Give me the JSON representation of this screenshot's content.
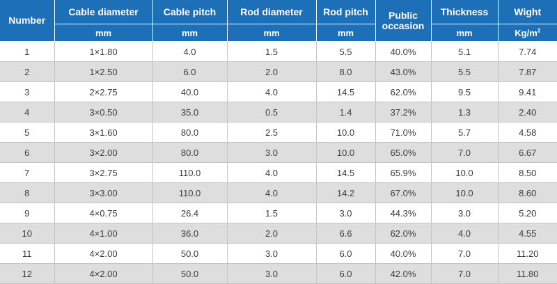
{
  "table": {
    "headers": {
      "number": "Number",
      "cable_diameter": "Cable diameter",
      "cable_pitch": "Cable pitch",
      "rod_diameter": "Rod diameter",
      "rod_pitch": "Rod pitch",
      "public_occasion_line1": "Public",
      "public_occasion_line2": "occasion",
      "thickness": "Thickness",
      "weight": "Wight"
    },
    "units": {
      "cable_diameter": "mm",
      "cable_pitch": "mm",
      "rod_diameter": "mm",
      "rod_pitch": "mm",
      "thickness": "mm",
      "weight_base": "Kg/m",
      "weight_exp": "2"
    },
    "rows": [
      [
        "1",
        "1×1.80",
        "4.0",
        "1.5",
        "5.5",
        "40.0%",
        "5.1",
        "7.74"
      ],
      [
        "2",
        "1×2.50",
        "6.0",
        "2.0",
        "8.0",
        "43.0%",
        "5.5",
        "7.87"
      ],
      [
        "3",
        "2×2.75",
        "40.0",
        "4.0",
        "14.5",
        "62.0%",
        "9.5",
        "9.41"
      ],
      [
        "4",
        "3×0.50",
        "35.0",
        "0.5",
        "1.4",
        "37.2%",
        "1.3",
        "2.40"
      ],
      [
        "5",
        "3×1.60",
        "80.0",
        "2.5",
        "10.0",
        "71.0%",
        "5.7",
        "4.58"
      ],
      [
        "6",
        "3×2.00",
        "80.0",
        "3.0",
        "10.0",
        "65.0%",
        "7.0",
        "6.67"
      ],
      [
        "7",
        "3×2.75",
        "110.0",
        "4.0",
        "14.5",
        "65.9%",
        "10.0",
        "8.50"
      ],
      [
        "8",
        "3×3.00",
        "110.0",
        "4.0",
        "14.2",
        "67.0%",
        "10.0",
        "8.60"
      ],
      [
        "9",
        "4×0.75",
        "26.4",
        "1.5",
        "3.0",
        "44.3%",
        "3.0",
        "5.20"
      ],
      [
        "10",
        "4×1.00",
        "36.0",
        "2.0",
        "6.6",
        "62.0%",
        "4.0",
        "4.55"
      ],
      [
        "11",
        "4×2.00",
        "50.0",
        "3.0",
        "6.0",
        "40.0%",
        "7.0",
        "11.20"
      ],
      [
        "12",
        "4×2.00",
        "50.0",
        "3.0",
        "6.0",
        "42.0%",
        "7.0",
        "11.80"
      ]
    ]
  }
}
